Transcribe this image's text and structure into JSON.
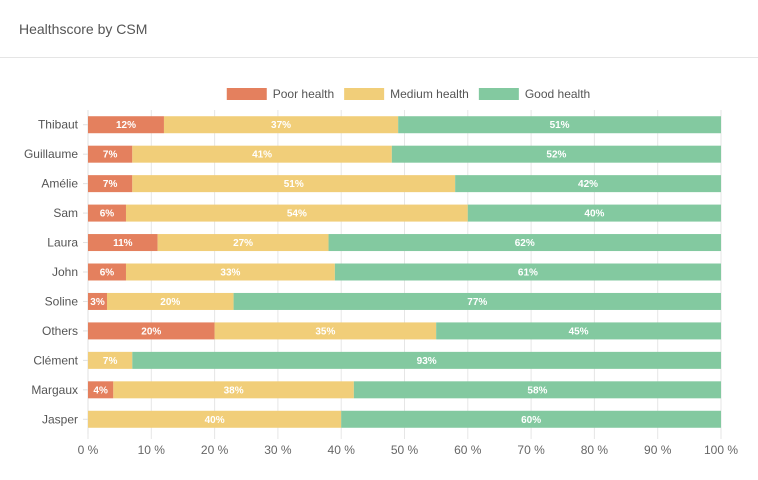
{
  "header": {
    "title": "Healthscore by CSM"
  },
  "chart_data": {
    "type": "bar",
    "orientation": "horizontal",
    "stacked": true,
    "title": "",
    "xlabel": "",
    "ylabel": "",
    "xlim": [
      0,
      100
    ],
    "x_ticks": [
      0,
      10,
      20,
      30,
      40,
      50,
      60,
      70,
      80,
      90,
      100
    ],
    "x_tick_labels": [
      "0 %",
      "10 %",
      "20 %",
      "30 %",
      "40 %",
      "50 %",
      "60 %",
      "70 %",
      "80 %",
      "90 %",
      "100 %"
    ],
    "grid": true,
    "legend_position": "top",
    "categories": [
      "Thibaut",
      "Guillaume",
      "Amélie",
      "Sam",
      "Laura",
      "John",
      "Soline",
      "Others",
      "Clément",
      "Margaux",
      "Jasper"
    ],
    "series": [
      {
        "name": "Poor health",
        "color": "#e4805e",
        "values": [
          12,
          7,
          7,
          6,
          11,
          6,
          3,
          20,
          0,
          4,
          0
        ]
      },
      {
        "name": "Medium health",
        "color": "#f1ce79",
        "values": [
          37,
          41,
          51,
          54,
          27,
          33,
          20,
          35,
          7,
          38,
          40
        ]
      },
      {
        "name": "Good health",
        "color": "#83c9a0",
        "values": [
          51,
          52,
          42,
          40,
          62,
          61,
          77,
          45,
          93,
          58,
          60
        ]
      }
    ]
  }
}
